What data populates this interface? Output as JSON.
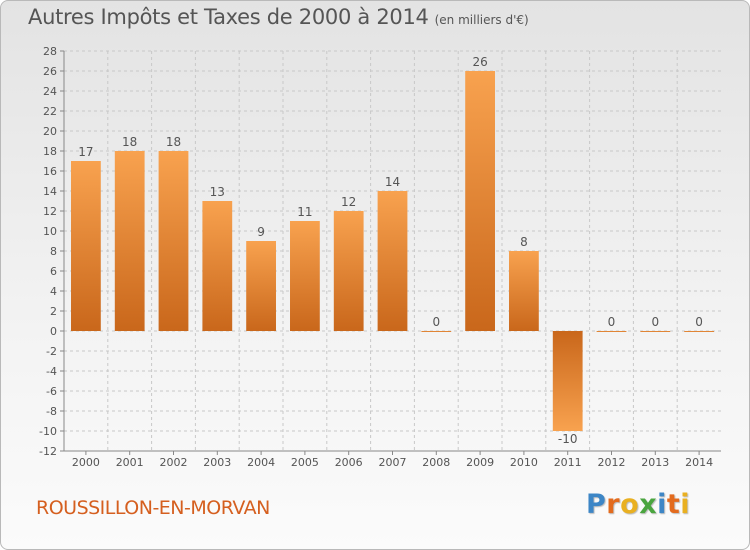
{
  "header": {
    "title": "Autres Impôts et Taxes de 2000 à 2014",
    "unit": "(en milliers d'€)"
  },
  "footer": {
    "commune": "ROUSSILLON-EN-MORVAN",
    "logo_letters": [
      "P",
      "r",
      "o",
      "x",
      "i",
      "t",
      "i"
    ],
    "logo_colors": [
      "#3d86c6",
      "#e36b1e",
      "#e9b021",
      "#4aa53f",
      "#3d86c6",
      "#e36b1e",
      "#e9b021"
    ]
  },
  "colors": {
    "bar_light": "#f8a24f",
    "bar_dark": "#c9671b",
    "axis": "#888888",
    "grid": "#c8c8c8",
    "text": "#555555"
  },
  "chart_data": {
    "type": "bar",
    "title": "Autres Impôts et Taxes de 2000 à 2014",
    "subtitle": "(en milliers d'€)",
    "categories": [
      "2000",
      "2001",
      "2002",
      "2003",
      "2004",
      "2005",
      "2006",
      "2007",
      "2008",
      "2009",
      "2010",
      "2011",
      "2012",
      "2013",
      "2014"
    ],
    "values": [
      17,
      18,
      18,
      13,
      9,
      11,
      12,
      14,
      0,
      26,
      8,
      -10,
      0,
      0,
      0
    ],
    "value_labels": [
      "17",
      "18",
      "18",
      "13",
      "9",
      "11",
      "12",
      "14",
      "0",
      "26",
      "8",
      "-10",
      "0",
      "0",
      "0"
    ],
    "y_ticks": [
      "-12",
      "-10",
      "-8",
      "-6",
      "-4",
      "-2",
      "0",
      "2",
      "4",
      "6",
      "8",
      "10",
      "12",
      "14",
      "16",
      "18",
      "20",
      "22",
      "24",
      "26",
      "28"
    ],
    "ylim": [
      -12,
      28
    ],
    "grid": "horizontal dashed",
    "legend": "none",
    "xlabel": "",
    "ylabel": ""
  }
}
